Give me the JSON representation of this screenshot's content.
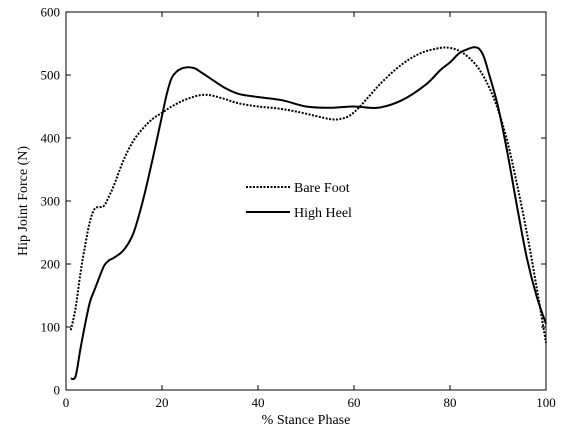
{
  "chart_data": {
    "type": "line",
    "xlabel": "% Stance Phase",
    "ylabel": "Hip Joint Force (N)",
    "xlim": [
      0,
      100
    ],
    "ylim": [
      0,
      600
    ],
    "xticks": [
      0,
      20,
      40,
      60,
      80,
      100
    ],
    "yticks": [
      0,
      100,
      200,
      300,
      400,
      500,
      600
    ],
    "grid": false,
    "legend_position": "center",
    "series": [
      {
        "name": "Bare Foot",
        "style": "dotted",
        "color": "#000000",
        "x": [
          1,
          2,
          3,
          4,
          5,
          6,
          7,
          8,
          9,
          10,
          12,
          14,
          16,
          18,
          20,
          22,
          24,
          26,
          28,
          30,
          33,
          36,
          40,
          44,
          48,
          52,
          55,
          57,
          59,
          61,
          63,
          66,
          70,
          74,
          78,
          80,
          82,
          84,
          86,
          88,
          90,
          92,
          94,
          96,
          98,
          100
        ],
        "y": [
          95,
          130,
          185,
          230,
          268,
          288,
          290,
          293,
          308,
          325,
          365,
          395,
          415,
          430,
          440,
          450,
          458,
          464,
          468,
          468,
          462,
          455,
          450,
          447,
          442,
          435,
          430,
          430,
          435,
          448,
          465,
          490,
          517,
          535,
          543,
          543,
          538,
          527,
          510,
          483,
          445,
          393,
          325,
          250,
          165,
          75
        ]
      },
      {
        "name": "High Heel",
        "style": "solid",
        "color": "#000000",
        "x": [
          1,
          2,
          3,
          4,
          5,
          6,
          7,
          8,
          9,
          10,
          12,
          14,
          16,
          18,
          20,
          21,
          22,
          23,
          24,
          25,
          26,
          27,
          28,
          30,
          33,
          36,
          40,
          45,
          50,
          55,
          60,
          65,
          70,
          75,
          78,
          80,
          82,
          84,
          85,
          86,
          87,
          88,
          90,
          92,
          94,
          96,
          98,
          100
        ],
        "y": [
          18,
          22,
          65,
          105,
          140,
          160,
          180,
          198,
          206,
          210,
          222,
          248,
          300,
          365,
          435,
          470,
          495,
          505,
          510,
          512,
          512,
          510,
          505,
          495,
          480,
          470,
          465,
          460,
          450,
          448,
          450,
          448,
          460,
          485,
          508,
          520,
          535,
          542,
          544,
          542,
          530,
          505,
          450,
          375,
          290,
          210,
          150,
          105
        ]
      }
    ]
  }
}
